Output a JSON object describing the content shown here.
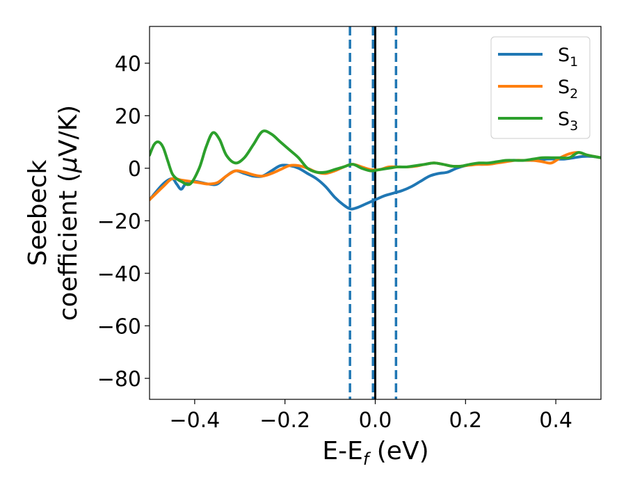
{
  "chart_data": {
    "type": "line",
    "title": "",
    "xlabel": {
      "main": "E-E",
      "sub": "f",
      "unit": " (eV)"
    },
    "ylabel": {
      "line1": "Seebeck",
      "line2_prefix": "coefficient  (",
      "line2_mu": "μ",
      "line2_suffix": "V/K)"
    },
    "xlim": [
      -0.5,
      0.5
    ],
    "ylim": [
      -88,
      54
    ],
    "xticks": [
      -0.4,
      -0.2,
      0.0,
      0.2,
      0.4
    ],
    "xtick_labels": [
      "−0.4",
      "−0.2",
      "0.0",
      "0.2",
      "0.4"
    ],
    "yticks": [
      -80,
      -60,
      -40,
      -20,
      0,
      20,
      40
    ],
    "ytick_labels": [
      "−80",
      "−60",
      "−40",
      "−20",
      "0",
      "20",
      "40"
    ],
    "grid": false,
    "legend_position": "top-right",
    "vlines": [
      {
        "x": -0.056,
        "style": "dashed",
        "color": "#1f77b4"
      },
      {
        "x": -0.005,
        "style": "dashed",
        "color": "#1f77b4"
      },
      {
        "x": 0.046,
        "style": "dashed",
        "color": "#1f77b4"
      },
      {
        "x": 0.0,
        "style": "solid",
        "color": "#000000"
      }
    ],
    "series": [
      {
        "name": "S",
        "sub": "1",
        "color": "#1f77b4",
        "x": [
          -0.5,
          -0.47,
          -0.45,
          -0.44,
          -0.43,
          -0.42,
          -0.4,
          -0.37,
          -0.35,
          -0.33,
          -0.31,
          -0.29,
          -0.27,
          -0.25,
          -0.23,
          -0.21,
          -0.19,
          -0.17,
          -0.15,
          -0.13,
          -0.11,
          -0.09,
          -0.07,
          -0.055,
          -0.04,
          -0.02,
          0.0,
          0.02,
          0.04,
          0.06,
          0.08,
          0.1,
          0.12,
          0.14,
          0.16,
          0.18,
          0.2,
          0.22,
          0.24,
          0.26,
          0.28,
          0.3,
          0.32,
          0.34,
          0.36,
          0.38,
          0.4,
          0.42,
          0.44,
          0.46,
          0.48,
          0.5
        ],
        "y": [
          -12,
          -6,
          -4,
          -6,
          -8,
          -6,
          -5,
          -6,
          -6,
          -3,
          -1,
          -2,
          -3,
          -3,
          -1,
          1,
          1,
          0,
          -2,
          -4,
          -7,
          -11,
          -14,
          -15.5,
          -15,
          -13.5,
          -12,
          -10.5,
          -9.5,
          -8.5,
          -7,
          -5,
          -3,
          -2,
          -1.5,
          0,
          1,
          1.5,
          1.5,
          2,
          2.5,
          3,
          3,
          3,
          3,
          3.5,
          3.5,
          3.5,
          4,
          4.5,
          4.5,
          4
        ]
      },
      {
        "name": "S",
        "sub": "2",
        "color": "#ff7f0e",
        "x": [
          -0.5,
          -0.47,
          -0.45,
          -0.43,
          -0.41,
          -0.39,
          -0.37,
          -0.35,
          -0.33,
          -0.31,
          -0.29,
          -0.27,
          -0.25,
          -0.23,
          -0.21,
          -0.19,
          -0.17,
          -0.15,
          -0.13,
          -0.11,
          -0.09,
          -0.07,
          -0.05,
          -0.03,
          -0.01,
          0.01,
          0.03,
          0.05,
          0.07,
          0.09,
          0.11,
          0.13,
          0.15,
          0.17,
          0.19,
          0.21,
          0.23,
          0.25,
          0.27,
          0.29,
          0.31,
          0.33,
          0.35,
          0.37,
          0.39,
          0.41,
          0.43,
          0.45,
          0.47,
          0.5
        ],
        "y": [
          -12,
          -7,
          -4,
          -4.5,
          -5,
          -5.5,
          -6,
          -5.5,
          -3,
          -1,
          -1.5,
          -2.5,
          -3,
          -2,
          -0.5,
          1,
          1,
          0,
          -1.5,
          -2,
          -1,
          0.5,
          1.5,
          0.5,
          -0.5,
          -0.5,
          0.5,
          0.5,
          0.5,
          0.8,
          1.5,
          2,
          1.5,
          0.8,
          0.8,
          1.2,
          1.5,
          1.5,
          2,
          2.5,
          3,
          3,
          3,
          2.5,
          2,
          4,
          5.5,
          6,
          5,
          4
        ]
      },
      {
        "name": "S",
        "sub": "3",
        "color": "#2ca02c",
        "x": [
          -0.5,
          -0.49,
          -0.48,
          -0.47,
          -0.46,
          -0.45,
          -0.44,
          -0.43,
          -0.41,
          -0.39,
          -0.375,
          -0.36,
          -0.345,
          -0.33,
          -0.31,
          -0.29,
          -0.27,
          -0.25,
          -0.23,
          -0.21,
          -0.19,
          -0.17,
          -0.15,
          -0.13,
          -0.11,
          -0.09,
          -0.07,
          -0.05,
          -0.03,
          -0.01,
          0.01,
          0.03,
          0.05,
          0.07,
          0.09,
          0.11,
          0.13,
          0.15,
          0.17,
          0.19,
          0.21,
          0.23,
          0.25,
          0.27,
          0.29,
          0.31,
          0.33,
          0.35,
          0.37,
          0.39,
          0.41,
          0.43,
          0.45,
          0.47,
          0.5
        ],
        "y": [
          5,
          9,
          10,
          8,
          3,
          -2,
          -4,
          -5,
          -6,
          0,
          8,
          13.5,
          11,
          5,
          2,
          4,
          9,
          14,
          13,
          10,
          7,
          4,
          0,
          -1.5,
          -1.5,
          -0.5,
          0.5,
          1.5,
          0,
          -1,
          -0.5,
          0,
          0.5,
          0.5,
          1,
          1.5,
          2,
          1.5,
          0.8,
          0.8,
          1.5,
          2,
          2,
          2.5,
          3,
          3,
          3,
          3.5,
          4,
          4,
          4,
          4,
          6,
          5,
          4
        ]
      }
    ]
  }
}
